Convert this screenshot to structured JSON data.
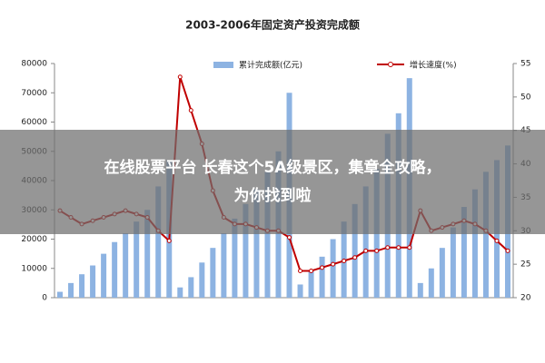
{
  "chart_data": {
    "type": "bar-line",
    "title": "2003-2006年固定资产投资完成额",
    "categories": [
      null,
      null,
      null,
      null,
      null,
      null,
      null,
      null,
      null,
      null,
      null,
      null,
      null,
      null,
      null,
      null,
      null,
      null,
      null,
      null,
      null,
      null,
      null,
      null,
      null,
      null,
      null,
      null,
      null,
      null,
      null,
      null,
      null,
      null,
      null,
      null,
      null,
      null,
      null,
      null,
      null,
      null
    ],
    "series": [
      {
        "name": "累计完成额(亿元)",
        "color": "#8db3e2",
        "type": "bar",
        "values": [
          2000,
          5000,
          8000,
          11000,
          15000,
          19000,
          22000,
          26000,
          30000,
          38000,
          47000,
          3500,
          7000,
          12000,
          17000,
          22000,
          27000,
          32000,
          37000,
          43000,
          50000,
          70000,
          4500,
          9000,
          14000,
          20000,
          26000,
          32000,
          38000,
          44000,
          56000,
          63000,
          75000,
          5000,
          10000,
          17000,
          24000,
          31000,
          37000,
          43000,
          47000,
          52000
        ]
      },
      {
        "name": "增长速度(%)",
        "color": "#c00000",
        "type": "line",
        "axis": "y2",
        "values": [
          33,
          32,
          31,
          31.5,
          32,
          32.5,
          33,
          32.5,
          32,
          30,
          28.5,
          53,
          48,
          43,
          36,
          32,
          31,
          31,
          30.5,
          30,
          30,
          29,
          24,
          24,
          24.5,
          25,
          25.5,
          26,
          27,
          27,
          27.5,
          27.5,
          27.5,
          33,
          30,
          30.5,
          31,
          31.5,
          31,
          30,
          28.5,
          27
        ]
      }
    ],
    "ylim": [
      0,
      80000
    ],
    "yticks": [
      0,
      10000,
      20000,
      30000,
      40000,
      50000,
      60000,
      70000,
      80000
    ],
    "y2lim": [
      20,
      55
    ],
    "y2ticks": [
      20,
      25,
      30,
      35,
      40,
      45,
      50,
      55
    ]
  },
  "overlay": {
    "lines": [
      "在线股票平台 长春这个5A级景区，集章全攻略，",
      "为你找到啦"
    ]
  }
}
